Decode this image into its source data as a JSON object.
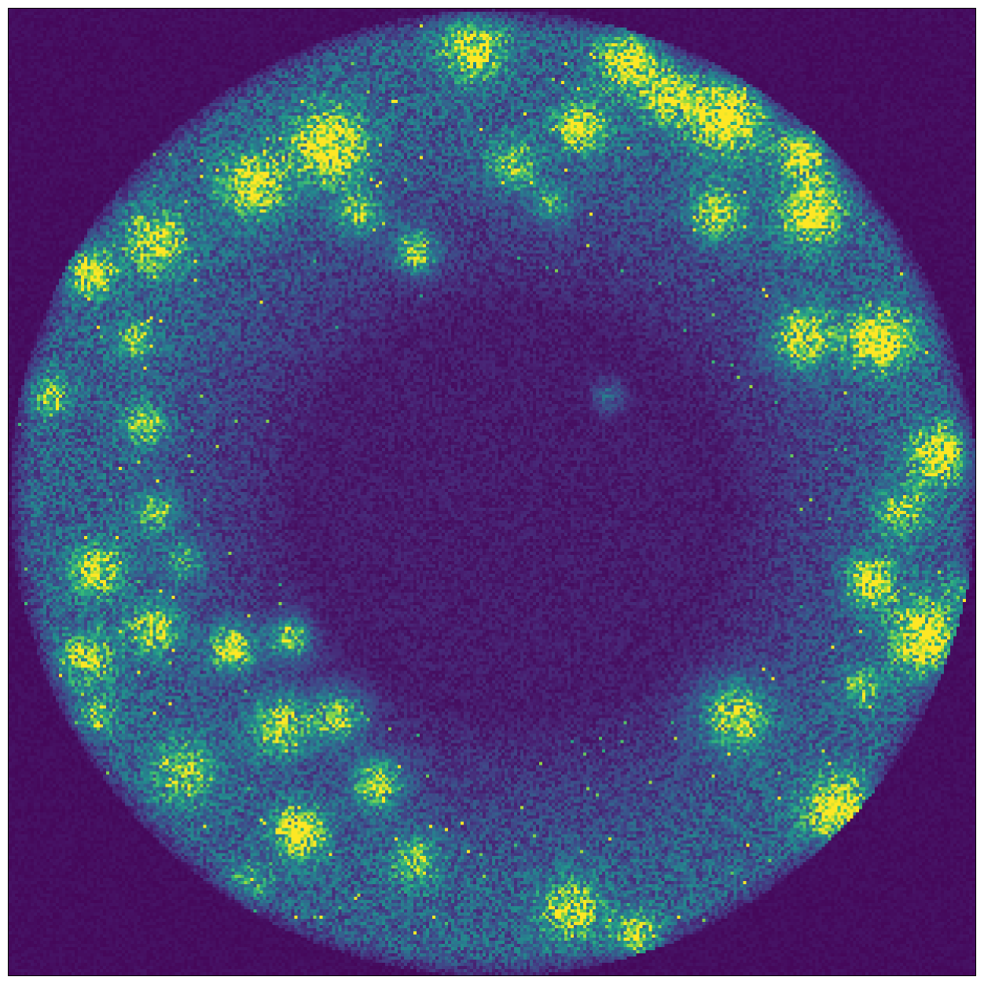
{
  "image": {
    "colormap": "viridis",
    "colors": {
      "background": "#440154",
      "low": "#3b528b",
      "mid": "#21918c",
      "high": "#5ec962",
      "peak": "#fde725"
    },
    "axes_visible": false
  }
}
